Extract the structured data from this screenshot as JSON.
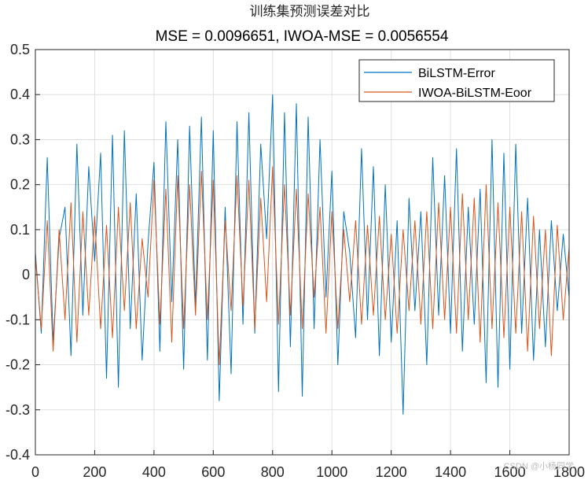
{
  "chart_data": {
    "type": "line",
    "title": "训练集预测误差对比",
    "subtitle": "MSE = 0.0096651, IWOA-MSE = 0.0056554",
    "xlabel": "",
    "ylabel": "",
    "xlim": [
      0,
      1800
    ],
    "ylim": [
      -0.4,
      0.5
    ],
    "grid": true,
    "legend_position": "top-right",
    "xticks": [
      0,
      200,
      400,
      600,
      800,
      1000,
      1200,
      1400,
      1600,
      1800
    ],
    "yticks": [
      -0.4,
      -0.3,
      -0.2,
      -0.1,
      0,
      0.1,
      0.2,
      0.3,
      0.4,
      0.5
    ],
    "ytick_labels": [
      "-0.4",
      "-0.3",
      "-0.2",
      "-0.1",
      "0",
      "0.1",
      "0.2",
      "0.3",
      "0.4",
      "0.5"
    ],
    "series": [
      {
        "name": "BiLSTM-Error",
        "color": "#0072BD",
        "x_start": 0,
        "x_step": 20,
        "values": [
          0.05,
          -0.13,
          0.26,
          -0.15,
          0.08,
          0.15,
          -0.18,
          0.29,
          -0.09,
          0.24,
          0.03,
          0.27,
          -0.23,
          0.31,
          -0.25,
          0.32,
          -0.12,
          0.18,
          -0.19,
          0.07,
          0.25,
          -0.17,
          0.34,
          -0.06,
          0.3,
          -0.21,
          0.33,
          -0.07,
          0.35,
          -0.19,
          0.32,
          -0.28,
          0.15,
          -0.22,
          0.34,
          -0.11,
          0.36,
          -0.13,
          0.29,
          0.08,
          0.4,
          -0.26,
          0.36,
          -0.16,
          0.38,
          -0.27,
          0.35,
          -0.12,
          0.3,
          -0.05,
          0.23,
          -0.2,
          0.14,
          0.05,
          -0.14,
          0.28,
          -0.1,
          0.24,
          -0.18,
          0.2,
          -0.15,
          0.12,
          -0.31,
          0.17,
          -0.08,
          0.14,
          -0.2,
          0.26,
          -0.09,
          0.22,
          -0.13,
          0.28,
          -0.17,
          0.15,
          -0.11,
          0.19,
          -0.24,
          0.3,
          -0.25,
          0.27,
          -0.21,
          0.29,
          -0.13,
          0.17,
          -0.19,
          0.1,
          -0.16,
          0.12,
          -0.08,
          0.09,
          -0.05
        ]
      },
      {
        "name": "IWOA-BiLSTM-Eoor",
        "color": "#D95319",
        "x_start": 0,
        "x_step": 20,
        "values": [
          0.04,
          -0.12,
          0.12,
          -0.17,
          0.1,
          -0.1,
          0.16,
          -0.15,
          0.14,
          -0.09,
          0.13,
          -0.12,
          0.11,
          -0.14,
          0.15,
          -0.08,
          0.16,
          -0.12,
          0.08,
          -0.05,
          0.21,
          -0.11,
          0.19,
          -0.15,
          0.22,
          -0.12,
          0.2,
          -0.09,
          0.23,
          -0.1,
          0.21,
          -0.2,
          0.12,
          -0.08,
          0.22,
          -0.07,
          0.21,
          -0.12,
          0.17,
          -0.06,
          0.24,
          -0.11,
          0.2,
          -0.09,
          0.19,
          -0.12,
          0.18,
          -0.05,
          0.15,
          -0.13,
          0.14,
          -0.12,
          0.1,
          -0.06,
          0.12,
          -0.11,
          0.11,
          -0.09,
          0.13,
          -0.1,
          0.09,
          -0.13,
          0.1,
          -0.08,
          0.12,
          -0.11,
          0.14,
          -0.12,
          0.16,
          -0.1,
          0.15,
          -0.13,
          0.18,
          -0.1,
          0.17,
          -0.15,
          0.2,
          -0.12,
          0.16,
          -0.14,
          0.15,
          -0.13,
          0.14,
          -0.17,
          0.13,
          -0.12,
          0.1,
          -0.18,
          0.11,
          -0.1,
          0.06
        ]
      }
    ]
  },
  "watermark": "CSDN @小杨同学"
}
